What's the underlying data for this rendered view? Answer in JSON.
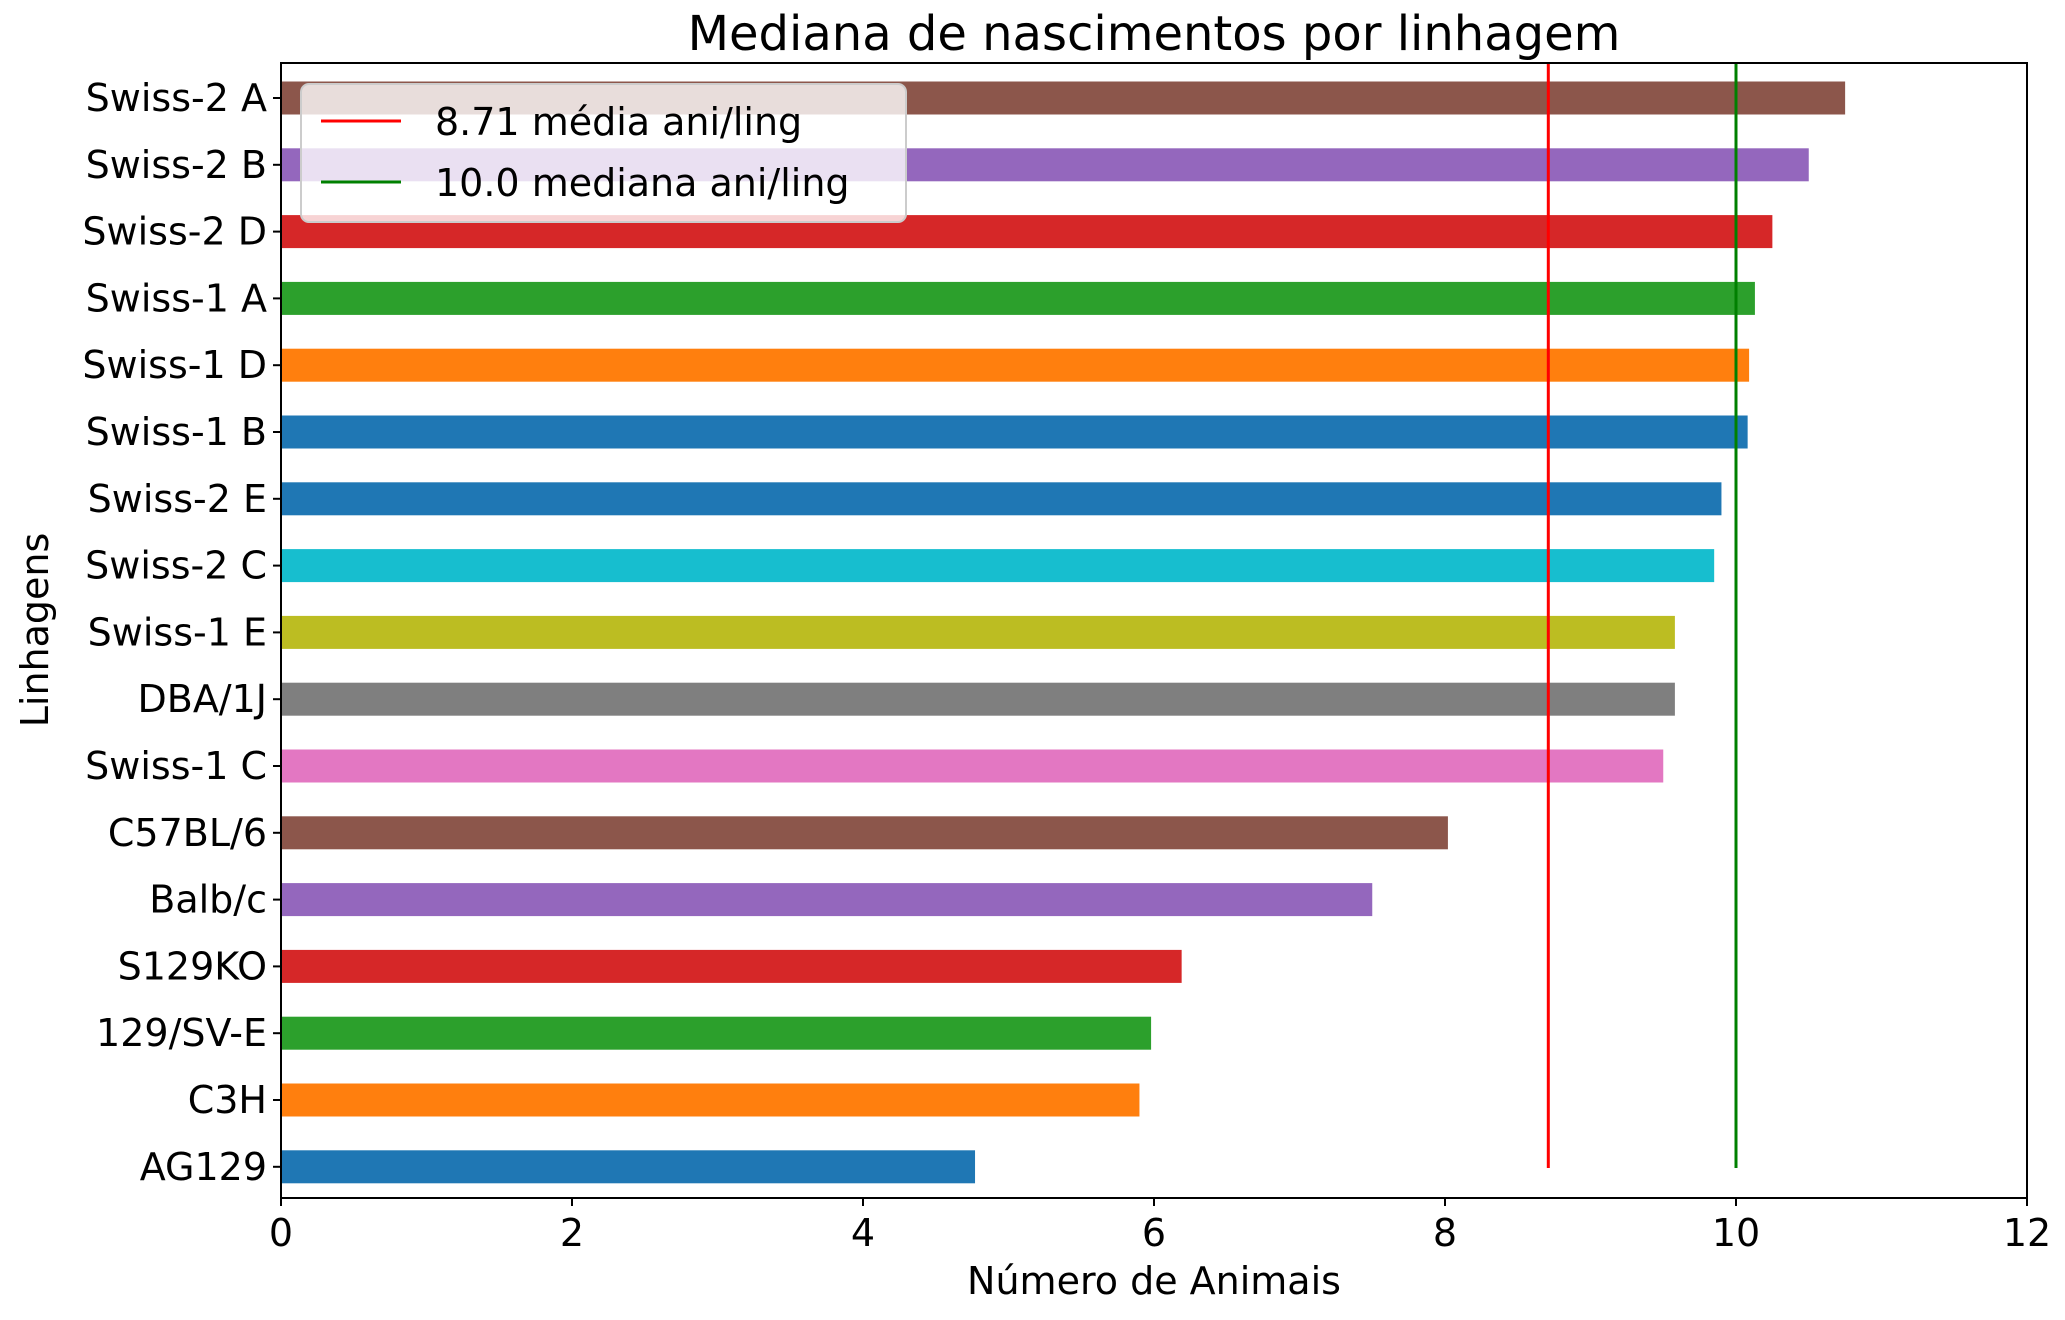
{
  "chart_data": {
    "type": "bar",
    "orientation": "horizontal",
    "title": "Mediana de nascimentos por linhagem",
    "xlabel": "Número de Animais",
    "ylabel": "Linhagens",
    "xlim": [
      0,
      12
    ],
    "xticks": [
      "0",
      "2",
      "4",
      "6",
      "8",
      "10",
      "12"
    ],
    "grid": false,
    "legend_position": "top-left",
    "categories": [
      "Swiss-2 A",
      "Swiss-2 B",
      "Swiss-2 D",
      "Swiss-1 A",
      "Swiss-1 D",
      "Swiss-1 B",
      "Swiss-2 E",
      "Swiss-2 C",
      "Swiss-1 E",
      "DBA/1J",
      "Swiss-1 C",
      "C57BL/6",
      "Balb/c",
      "S129KO",
      "129/SV-E",
      "C3H",
      "AG129"
    ],
    "values": [
      10.75,
      10.5,
      10.25,
      10.13,
      10.09,
      10.08,
      9.9,
      9.85,
      9.58,
      9.58,
      9.5,
      8.02,
      7.5,
      6.19,
      5.98,
      5.9,
      4.77
    ],
    "colors": [
      "#8c564b",
      "#9467bd",
      "#d62728",
      "#2ca02c",
      "#ff7f0e",
      "#1f77b4",
      "#1f77b4",
      "#17becf",
      "#bcbd22",
      "#7f7f7f",
      "#e377c2",
      "#8c564b",
      "#9467bd",
      "#d62728",
      "#2ca02c",
      "#ff7f0e",
      "#1f77b4"
    ],
    "reference_lines": [
      {
        "label": "8.71 média ani/ling",
        "value": 8.71,
        "color": "#ff0000"
      },
      {
        "label": "10.0 mediana ani/ling",
        "value": 10.0,
        "color": "#008000"
      }
    ]
  }
}
